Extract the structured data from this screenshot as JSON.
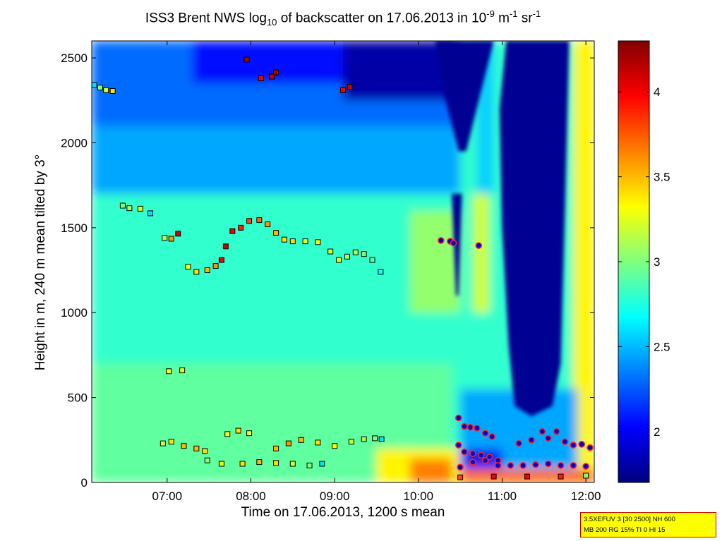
{
  "chart_data": {
    "type": "heatmap",
    "title": {
      "prefix": "ISS3 Brent NWS log",
      "sub": "10",
      "middle": " of backscatter on 17.06.2013 in 10",
      "exp1": "-9",
      "unit1": " m",
      "exp2": "-1",
      "unit2": " sr",
      "exp3": "-1"
    },
    "xlabel": "Time on 17.06.2013, 1200 s mean",
    "ylabel": "Height in m, 240 m mean tilted by 3°",
    "xlim_hours": [
      6.1,
      12.1
    ],
    "ylim": [
      0,
      2600
    ],
    "x_ticks": [
      {
        "value": 7,
        "label": "07:00"
      },
      {
        "value": 8,
        "label": "08:00"
      },
      {
        "value": 9,
        "label": "09:00"
      },
      {
        "value": 10,
        "label": "10:00"
      },
      {
        "value": 11,
        "label": "11:00"
      },
      {
        "value": 12,
        "label": "12:00"
      }
    ],
    "y_ticks": [
      0,
      500,
      1000,
      1500,
      2000,
      2500
    ],
    "colorbar": {
      "range": [
        1.7,
        4.3
      ],
      "ticks": [
        2,
        2.5,
        3,
        3.5,
        4
      ],
      "colormap": "jet"
    },
    "layers": [
      {
        "t0": 6.1,
        "t1": 12.1,
        "h0": 0,
        "h1": 2600,
        "value": 2.8
      },
      {
        "t0": 6.1,
        "t1": 10.5,
        "h0": 1700,
        "h1": 2600,
        "value": 2.45
      },
      {
        "t0": 6.1,
        "t1": 10.5,
        "h0": 2100,
        "h1": 2600,
        "value": 2.3
      },
      {
        "t0": 7.3,
        "t1": 9.3,
        "h0": 2350,
        "h1": 2600,
        "value": 2.05
      },
      {
        "t0": 9.1,
        "t1": 10.5,
        "h0": 2250,
        "h1": 2600,
        "value": 1.8
      },
      {
        "t0": 6.1,
        "t1": 10.4,
        "h0": 0,
        "h1": 700,
        "value": 2.92
      },
      {
        "t0": 9.5,
        "t1": 10.5,
        "h0": 0,
        "h1": 200,
        "value": 3.35
      },
      {
        "t0": 9.9,
        "t1": 10.4,
        "h0": 0,
        "h1": 140,
        "value": 3.65
      },
      {
        "t0": 9.9,
        "t1": 10.5,
        "h0": 1000,
        "h1": 1600,
        "value": 3.05
      },
      {
        "t0": 10.65,
        "t1": 10.85,
        "h0": 1000,
        "h1": 1700,
        "value": 3.2
      },
      {
        "t0": 10.7,
        "t1": 10.9,
        "h0": 1700,
        "h1": 2600,
        "value": 2.55
      },
      {
        "t0": 11.85,
        "t1": 12.1,
        "h0": 0,
        "h1": 2600,
        "value": 3.35
      },
      {
        "t0": 10.5,
        "t1": 11.9,
        "h0": 0,
        "h1": 550,
        "value": 2.45
      },
      {
        "t0": 10.5,
        "t1": 11.0,
        "h0": 0,
        "h1": 200,
        "value": 2.1
      },
      {
        "t0": 10.5,
        "t1": 12.1,
        "h0": 0,
        "h1": 80,
        "value": 3.7
      }
    ],
    "clear_air_regions": [
      {
        "value": 1.75,
        "points": [
          [
            10.4,
            1700
          ],
          [
            10.52,
            1700
          ],
          [
            10.48,
            1100
          ],
          [
            10.45,
            1100
          ]
        ]
      },
      {
        "value": 1.75,
        "points": [
          [
            10.2,
            2600
          ],
          [
            10.9,
            2600
          ],
          [
            10.57,
            1950
          ],
          [
            10.48,
            1950
          ],
          [
            10.3,
            2300
          ]
        ]
      },
      {
        "value": 1.75,
        "points": [
          [
            11.05,
            2600
          ],
          [
            11.8,
            2600
          ],
          [
            11.75,
            1600
          ],
          [
            11.7,
            700
          ],
          [
            11.6,
            450
          ],
          [
            11.35,
            390
          ],
          [
            11.15,
            450
          ],
          [
            11.08,
            800
          ],
          [
            11.0,
            1500
          ],
          [
            10.97,
            2200
          ]
        ]
      }
    ],
    "series": [
      {
        "name": "cloud base",
        "marker": "square",
        "points": [
          [
            6.13,
            2340,
            2.6
          ],
          [
            6.2,
            2325,
            3.0
          ],
          [
            6.27,
            2310,
            3.2
          ],
          [
            6.35,
            2305,
            3.4
          ],
          [
            6.47,
            1630,
            3.0
          ],
          [
            6.55,
            1615,
            3.1
          ],
          [
            6.68,
            1612,
            3.2
          ],
          [
            6.8,
            1585,
            2.6
          ],
          [
            6.97,
            1440,
            3.1
          ],
          [
            7.05,
            1435,
            3.6
          ],
          [
            7.13,
            1465,
            4.1
          ],
          [
            7.25,
            1270,
            3.3
          ],
          [
            7.35,
            1240,
            3.4
          ],
          [
            7.48,
            1250,
            3.5
          ],
          [
            7.58,
            1275,
            3.6
          ],
          [
            7.65,
            1310,
            4.0
          ],
          [
            7.7,
            1390,
            4.1
          ],
          [
            7.78,
            1480,
            4.0
          ],
          [
            7.88,
            1500,
            3.9
          ],
          [
            7.98,
            1540,
            3.8
          ],
          [
            8.1,
            1545,
            3.7
          ],
          [
            8.2,
            1520,
            3.6
          ],
          [
            8.3,
            1470,
            3.5
          ],
          [
            8.4,
            1430,
            3.4
          ],
          [
            8.5,
            1420,
            3.4
          ],
          [
            8.65,
            1420,
            3.3
          ],
          [
            8.8,
            1415,
            3.3
          ],
          [
            8.95,
            1360,
            3.2
          ],
          [
            9.05,
            1310,
            3.2
          ],
          [
            9.15,
            1330,
            3.1
          ],
          [
            9.25,
            1355,
            3.1
          ],
          [
            9.35,
            1345,
            3.0
          ],
          [
            9.45,
            1310,
            2.9
          ],
          [
            9.55,
            1240,
            2.7
          ],
          [
            7.02,
            655,
            3.3
          ],
          [
            7.18,
            660,
            3.2
          ],
          [
            6.95,
            230,
            3.2
          ],
          [
            7.05,
            240,
            3.4
          ],
          [
            7.2,
            215,
            3.5
          ],
          [
            7.35,
            200,
            3.5
          ],
          [
            7.45,
            185,
            3.4
          ],
          [
            7.72,
            285,
            3.3
          ],
          [
            7.85,
            305,
            3.4
          ],
          [
            7.98,
            290,
            3.3
          ],
          [
            7.48,
            130,
            3.0
          ],
          [
            7.65,
            110,
            3.3
          ],
          [
            7.9,
            110,
            3.4
          ],
          [
            8.1,
            120,
            3.5
          ],
          [
            8.3,
            115,
            3.4
          ],
          [
            8.5,
            110,
            3.2
          ],
          [
            8.7,
            100,
            3.0
          ],
          [
            8.85,
            110,
            2.6
          ],
          [
            8.3,
            200,
            3.5
          ],
          [
            8.45,
            230,
            3.6
          ],
          [
            8.6,
            250,
            3.5
          ],
          [
            8.8,
            235,
            3.4
          ],
          [
            9.0,
            215,
            3.3
          ],
          [
            9.2,
            240,
            3.2
          ],
          [
            9.35,
            255,
            3.1
          ],
          [
            9.48,
            260,
            3.0
          ],
          [
            9.56,
            255,
            2.6
          ],
          [
            7.95,
            2490,
            4.2
          ],
          [
            8.12,
            2380,
            4.0
          ],
          [
            8.25,
            2390,
            4.1
          ],
          [
            8.3,
            2415,
            4.2
          ],
          [
            9.1,
            2310,
            4.0
          ],
          [
            9.18,
            2330,
            4.1
          ],
          [
            10.5,
            30,
            3.8
          ],
          [
            10.9,
            35,
            4.0
          ],
          [
            11.3,
            35,
            4.0
          ],
          [
            11.7,
            35,
            3.9
          ],
          [
            12.0,
            40,
            3.0
          ]
        ]
      },
      {
        "name": "aerosol layer",
        "marker": "dot",
        "points": [
          [
            10.27,
            1425,
            1.9
          ],
          [
            10.38,
            1420,
            1.9
          ],
          [
            10.42,
            1410,
            1.9
          ],
          [
            10.72,
            1395,
            1.9
          ],
          [
            10.48,
            380,
            1.9
          ],
          [
            10.55,
            330,
            1.9
          ],
          [
            10.62,
            325,
            1.9
          ],
          [
            10.7,
            320,
            1.9
          ],
          [
            10.8,
            290,
            1.9
          ],
          [
            10.88,
            270,
            1.9
          ],
          [
            10.48,
            220,
            1.9
          ],
          [
            10.55,
            180,
            1.9
          ],
          [
            10.65,
            170,
            1.9
          ],
          [
            10.75,
            160,
            1.9
          ],
          [
            10.85,
            150,
            1.9
          ],
          [
            10.95,
            130,
            1.9
          ],
          [
            11.2,
            230,
            1.9
          ],
          [
            11.35,
            250,
            1.9
          ],
          [
            11.48,
            300,
            1.9
          ],
          [
            11.55,
            260,
            1.9
          ],
          [
            11.65,
            300,
            1.9
          ],
          [
            11.75,
            240,
            1.9
          ],
          [
            11.85,
            220,
            1.9
          ],
          [
            11.95,
            225,
            1.9
          ],
          [
            12.05,
            205,
            1.9
          ],
          [
            10.5,
            90,
            1.9
          ],
          [
            10.65,
            120,
            1.9
          ],
          [
            10.8,
            130,
            1.9
          ],
          [
            10.95,
            100,
            1.9
          ],
          [
            11.1,
            100,
            1.9
          ],
          [
            11.25,
            100,
            1.9
          ],
          [
            11.4,
            105,
            1.9
          ],
          [
            11.55,
            110,
            1.9
          ],
          [
            11.7,
            100,
            1.9
          ],
          [
            11.85,
            100,
            1.9
          ],
          [
            12.0,
            95,
            1.9
          ]
        ]
      }
    ]
  },
  "infobox": {
    "line1": "3.5XEFUV 3 [30 2500] NH 600",
    "line2": "MB 200 RG 15% TI 0 HI 15"
  }
}
